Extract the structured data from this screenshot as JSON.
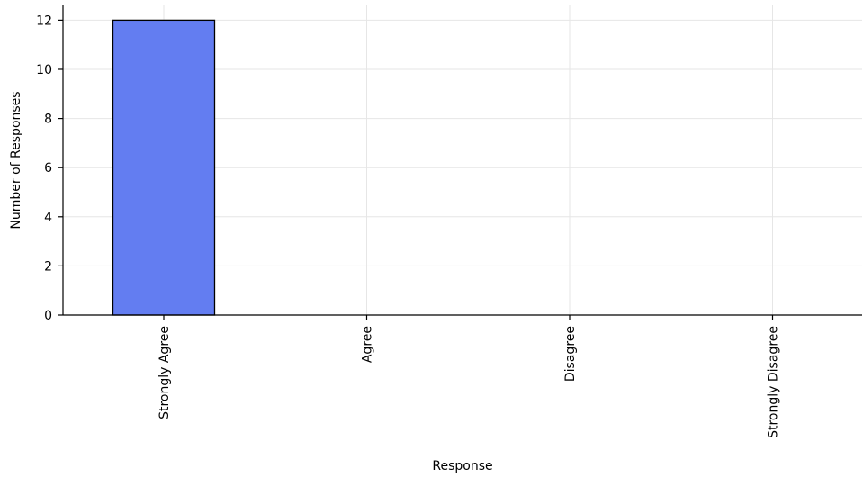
{
  "chart_data": {
    "type": "bar",
    "title": "",
    "xlabel": "Response",
    "ylabel": "Number of Responses",
    "categories": [
      "Strongly Agree",
      "Agree",
      "Disagree",
      "Strongly Disagree"
    ],
    "values": [
      12,
      0,
      0,
      0
    ],
    "ylim": [
      0,
      12.6
    ],
    "yticks": [
      0,
      2,
      4,
      6,
      8,
      10,
      12
    ],
    "grid": true,
    "bar_color": "#637df1",
    "bar_edge_color": "#000000",
    "grid_color": "#e6e6e6"
  }
}
